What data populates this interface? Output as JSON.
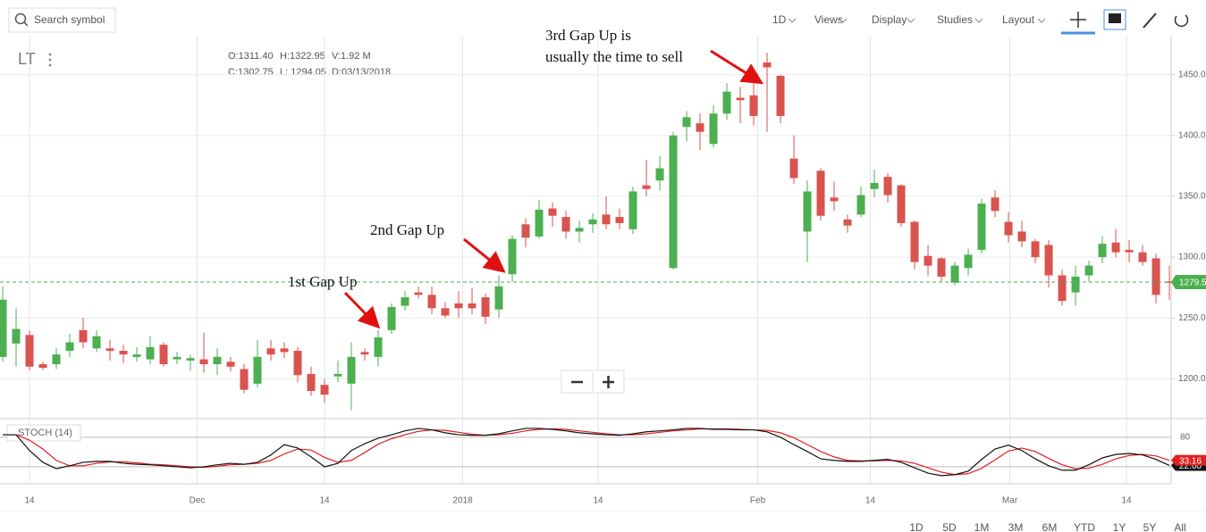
{
  "toolbar": {
    "search": "Search symbol",
    "menus": [
      "1D",
      "Views",
      "Display",
      "Studies",
      "Layout"
    ]
  },
  "symbol": "LT",
  "info": [
    [
      "O:1311.40",
      "H:1322.95",
      "V:1.92 M"
    ],
    [
      "C:1302.75",
      "L: 1294.05",
      "D:03/13/2018"
    ]
  ],
  "annotations": [
    "1st Gap Up",
    "2nd Gap Up",
    "3rd Gap Up is",
    "usually the time to sell"
  ],
  "ranges": [
    "1D",
    "5D",
    "1M",
    "3M",
    "6M",
    "YTD",
    "1Y",
    "5Y",
    "All"
  ],
  "chart_data": [
    {
      "type": "candlestick",
      "up_color": "#4caf50",
      "down_color": "#d9534f",
      "open": [
        1218,
        1229,
        1236,
        1212,
        1212,
        1223,
        1240,
        1225,
        1225,
        1223,
        1218,
        1216,
        1228,
        1216,
        1215,
        1216,
        1212,
        1214,
        1208,
        1196,
        1225,
        1225,
        1223,
        1204,
        1195,
        1202,
        1196,
        1222,
        1218,
        1240,
        1260,
        1271,
        1269,
        1258,
        1262,
        1262,
        1267,
        1257,
        1286,
        1327,
        1317,
        1340,
        1333,
        1321,
        1327,
        1335,
        1333,
        1323,
        1359,
        1363,
        1291,
        1407,
        1410,
        1393,
        1418,
        1431,
        1433,
        1460,
        1449,
        1381,
        1321,
        1371,
        1349,
        1331,
        1335,
        1356,
        1366,
        1359,
        1329,
        1301,
        1299,
        1279,
        1291,
        1306,
        1349,
        1329,
        1321,
        1313,
        1310,
        1285,
        1271,
        1285,
        1300,
        1312,
        1306,
        1304,
        1299,
        1280
      ],
      "high": [
        1276,
        1258,
        1240,
        1214,
        1225,
        1237,
        1250,
        1240,
        1232,
        1228,
        1226,
        1235,
        1230,
        1222,
        1220,
        1238,
        1225,
        1218,
        1212,
        1232,
        1232,
        1230,
        1226,
        1210,
        1200,
        1215,
        1230,
        1225,
        1240,
        1262,
        1272,
        1276,
        1276,
        1263,
        1272,
        1275,
        1270,
        1285,
        1318,
        1332,
        1347,
        1345,
        1338,
        1330,
        1336,
        1350,
        1340,
        1358,
        1380,
        1383,
        1403,
        1420,
        1418,
        1425,
        1443,
        1440,
        1443,
        1468,
        1450,
        1400,
        1363,
        1373,
        1362,
        1335,
        1358,
        1372,
        1369,
        1360,
        1330,
        1310,
        1300,
        1296,
        1307,
        1348,
        1355,
        1337,
        1330,
        1315,
        1314,
        1290,
        1293,
        1297,
        1317,
        1323,
        1314,
        1310,
        1303,
        1293
      ],
      "low": [
        1214,
        1210,
        1207,
        1207,
        1208,
        1218,
        1225,
        1222,
        1215,
        1213,
        1214,
        1212,
        1210,
        1212,
        1207,
        1205,
        1203,
        1206,
        1188,
        1193,
        1215,
        1217,
        1197,
        1186,
        1180,
        1197,
        1174,
        1215,
        1210,
        1237,
        1256,
        1266,
        1253,
        1250,
        1250,
        1253,
        1245,
        1250,
        1280,
        1308,
        1315,
        1325,
        1315,
        1312,
        1320,
        1323,
        1323,
        1319,
        1350,
        1355,
        1290,
        1395,
        1388,
        1390,
        1413,
        1410,
        1408,
        1403,
        1410,
        1360,
        1296,
        1330,
        1338,
        1320,
        1333,
        1349,
        1345,
        1325,
        1290,
        1285,
        1280,
        1277,
        1285,
        1303,
        1333,
        1312,
        1308,
        1295,
        1275,
        1260,
        1260,
        1280,
        1295,
        1300,
        1296,
        1293,
        1262,
        1265
      ],
      "close": [
        1265,
        1241,
        1210,
        1209,
        1220,
        1230,
        1230,
        1235,
        1223,
        1220,
        1220,
        1226,
        1212,
        1218,
        1217,
        1212,
        1218,
        1210,
        1191,
        1218,
        1220,
        1222,
        1203,
        1190,
        1187,
        1204,
        1218,
        1220,
        1234,
        1259,
        1267,
        1269,
        1258,
        1252,
        1258,
        1258,
        1251,
        1276,
        1315,
        1316,
        1339,
        1334,
        1321,
        1324,
        1331,
        1327,
        1328,
        1354,
        1356,
        1373,
        1400,
        1415,
        1403,
        1418,
        1436,
        1429,
        1416,
        1456,
        1416,
        1365,
        1354,
        1334,
        1346,
        1326,
        1351,
        1361,
        1351,
        1328,
        1296,
        1293,
        1284,
        1293,
        1302,
        1344,
        1338,
        1318,
        1313,
        1300,
        1285,
        1264,
        1284,
        1293,
        1311,
        1304,
        1304,
        1296,
        1269,
        1279.5
      ],
      "price_line": 1279.5,
      "price_line_color": "#4caf50",
      "ylim": [
        1168,
        1482
      ],
      "yticks": [
        {
          "value": 1200,
          "label": "1200.0"
        },
        {
          "value": 1250,
          "label": "1250.0"
        },
        {
          "value": 1300,
          "label": "1300.0"
        },
        {
          "value": 1350,
          "label": "1350.0"
        },
        {
          "value": 1400,
          "label": "1400.0"
        },
        {
          "value": 1450,
          "label": "1450.0"
        }
      ],
      "xlim": [
        -0.2,
        87.13
      ],
      "xticks": [
        {
          "value": 2,
          "label": "14"
        },
        {
          "value": 14.5,
          "label": "Dec"
        },
        {
          "value": 24,
          "label": "14"
        },
        {
          "value": 34.3,
          "label": "2018"
        },
        {
          "value": 44.4,
          "label": "14"
        },
        {
          "value": 56.3,
          "label": "Feb"
        },
        {
          "value": 64.7,
          "label": "14"
        },
        {
          "value": 75.1,
          "label": "Mar"
        },
        {
          "value": 83.8,
          "label": "14"
        }
      ],
      "grid": true
    },
    {
      "type": "line",
      "title": "STOCH (14)",
      "ylim": [
        -11,
        116
      ],
      "yticks": [
        80
      ],
      "levels": [
        20,
        80
      ],
      "series": [
        {
          "color": "#111111",
          "last_value": {
            "value": 22.6,
            "label": "22.60"
          },
          "values": [
            85,
            85,
            53,
            29,
            16,
            22,
            29,
            31,
            31,
            27,
            25,
            24,
            22,
            20,
            18,
            20,
            24,
            27,
            25,
            29,
            44,
            65,
            58,
            40,
            20,
            27,
            53,
            67,
            78,
            85,
            93,
            98,
            95,
            89,
            85,
            84,
            84,
            87,
            93,
            98,
            98,
            96,
            93,
            89,
            87,
            85,
            84,
            87,
            91,
            93,
            95,
            98,
            98,
            96,
            96,
            95,
            95,
            91,
            80,
            65,
            51,
            36,
            33,
            31,
            31,
            33,
            35,
            29,
            18,
            7,
            2,
            4,
            11,
            35,
            56,
            64,
            53,
            36,
            22,
            13,
            13,
            24,
            38,
            45,
            47,
            44,
            35,
            22.6
          ]
        },
        {
          "color": "#e02020",
          "last_value": 33.16,
          "values": [
            85,
            85,
            74,
            56,
            33,
            22,
            22,
            27,
            30,
            30,
            28,
            25,
            24,
            22,
            20,
            19,
            21,
            24,
            25,
            27,
            33,
            46,
            56,
            54,
            39,
            29,
            33,
            49,
            66,
            77,
            85,
            92,
            95,
            94,
            90,
            86,
            84,
            85,
            88,
            93,
            96,
            97,
            96,
            93,
            90,
            87,
            85,
            85,
            87,
            90,
            93,
            95,
            97,
            97,
            97,
            96,
            95,
            94,
            89,
            79,
            65,
            51,
            40,
            33,
            32,
            32,
            33,
            32,
            27,
            18,
            9,
            4,
            6,
            17,
            34,
            52,
            58,
            51,
            37,
            24,
            16,
            17,
            25,
            36,
            43,
            45,
            42,
            33.16
          ]
        }
      ]
    }
  ]
}
